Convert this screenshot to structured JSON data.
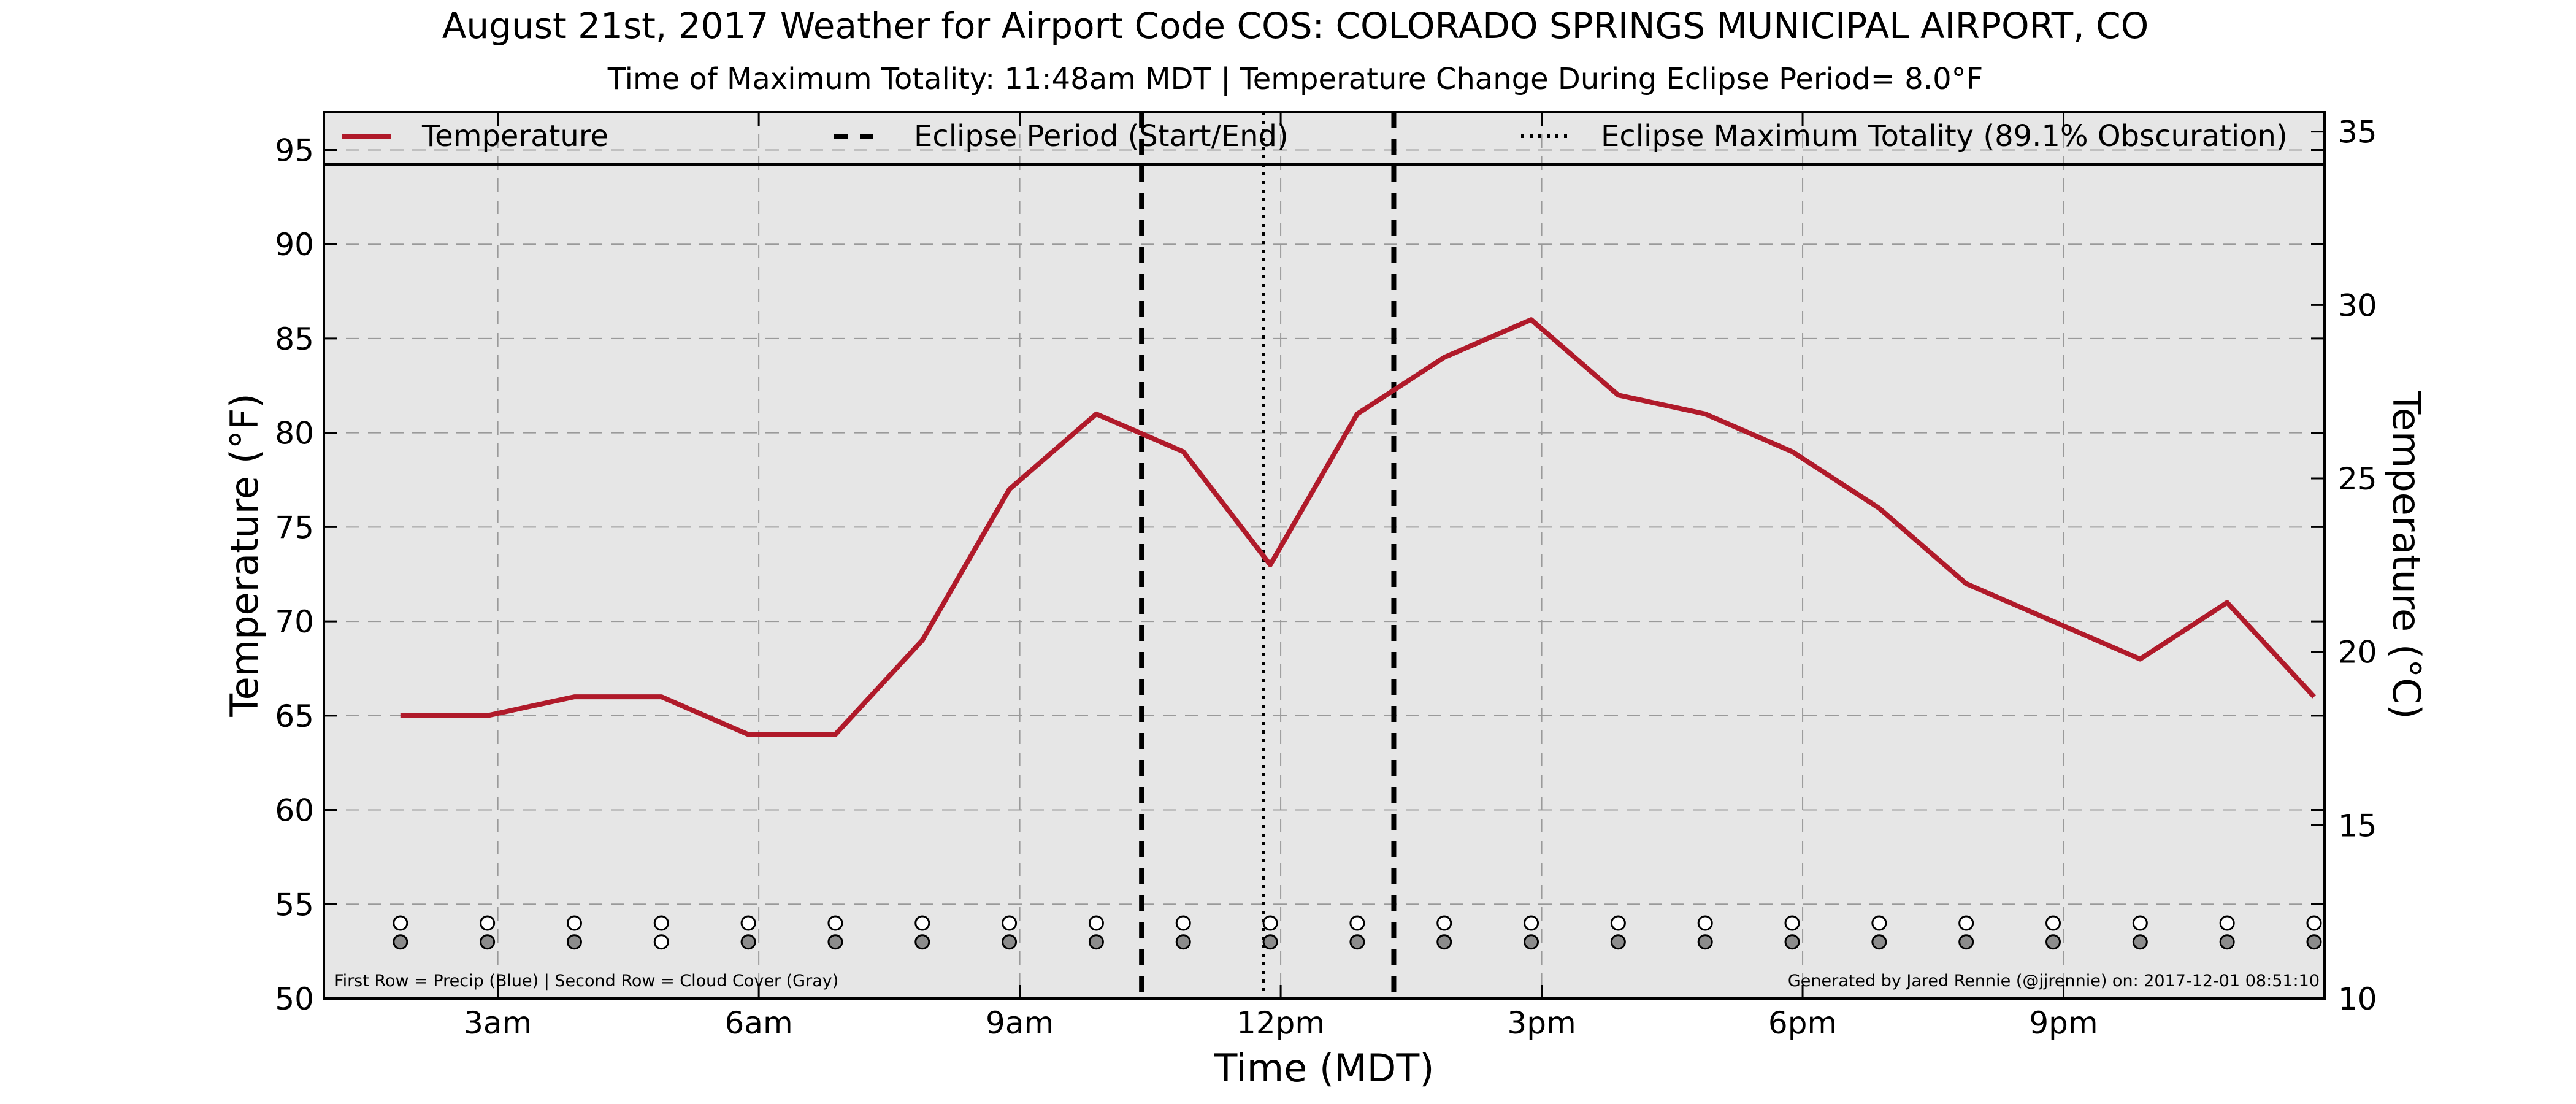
{
  "chart_data": {
    "type": "line",
    "title": "August 21st, 2017 Weather for Airport Code COS: COLORADO SPRINGS MUNICIPAL AIRPORT, CO",
    "subtitle": "Time of Maximum Totality: 11:48am MDT | Temperature Change During Eclipse Period= 8.0°F",
    "xlabel": "Time (MDT)",
    "ylabel": "Temperature (°F)",
    "ylabel_right": "Temperature (°C)",
    "xlim": [
      1.0,
      24.0
    ],
    "ylim": [
      50,
      97
    ],
    "ylim_right": [
      10,
      35.56
    ],
    "x_ticks": [
      {
        "x": 3,
        "label": "3am"
      },
      {
        "x": 6,
        "label": "6am"
      },
      {
        "x": 9,
        "label": "9am"
      },
      {
        "x": 12,
        "label": "12pm"
      },
      {
        "x": 15,
        "label": "3pm"
      },
      {
        "x": 18,
        "label": "6pm"
      },
      {
        "x": 21,
        "label": "9pm"
      }
    ],
    "x_gridlines": [
      3,
      6,
      9,
      12,
      15,
      18,
      21
    ],
    "y_ticks": [
      50,
      55,
      60,
      65,
      70,
      75,
      80,
      85,
      90,
      95
    ],
    "y_ticks_right": [
      10,
      15,
      20,
      25,
      30,
      35
    ],
    "grid": true,
    "legend_placement": "top",
    "legend": [
      {
        "label": "Temperature",
        "style": "solid",
        "color": "#b01a2a"
      },
      {
        "label": "Eclipse Period (Start/End)",
        "style": "dashed",
        "color": "#000000"
      },
      {
        "label": "Eclipse Maximum Totality (89.1% Obscuration)",
        "style": "dotted",
        "color": "#000000"
      }
    ],
    "series": [
      {
        "name": "Temperature",
        "color": "#b01a2a",
        "x": [
          1.88,
          2.88,
          3.88,
          4.88,
          5.88,
          6.88,
          7.88,
          8.88,
          9.88,
          10.88,
          11.88,
          12.88,
          13.88,
          14.88,
          15.88,
          16.88,
          17.88,
          18.88,
          19.88,
          20.88,
          21.88,
          22.88,
          23.88
        ],
        "y": [
          65,
          65,
          66,
          66,
          64,
          64,
          69,
          77,
          81,
          79,
          73,
          81,
          84,
          86,
          82,
          81,
          79,
          76,
          72,
          70,
          68,
          71,
          66
        ]
      }
    ],
    "eclipse_start": 10.4,
    "eclipse_end": 13.3,
    "eclipse_max": 11.8,
    "marker_rows": {
      "precip_y": 54,
      "cloud_y": 53,
      "precip": [
        0,
        0,
        0,
        0,
        0,
        0,
        0,
        0,
        0,
        0,
        0,
        0,
        0,
        0,
        0,
        0,
        0,
        0,
        0,
        0,
        0,
        0,
        0
      ],
      "cloud": [
        1,
        1,
        1,
        0,
        1,
        1,
        1,
        1,
        1,
        1,
        1,
        1,
        1,
        1,
        1,
        1,
        1,
        1,
        1,
        1,
        1,
        1,
        1
      ]
    },
    "note_left": "First Row = Precip (Blue) | Second Row = Cloud Cover (Gray)",
    "note_right": "Generated by Jared Rennie (@jjrennie) on: 2017-12-01 08:51:10"
  }
}
